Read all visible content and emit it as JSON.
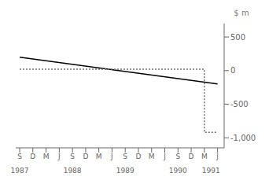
{
  "chart_data": {
    "type": "line",
    "ylabel": "$ m",
    "xlim": [
      -0.3,
      15.5
    ],
    "xticks": [
      {
        "value": 0,
        "label": "S"
      },
      {
        "value": 1,
        "label": "D"
      },
      {
        "value": 2,
        "label": "M"
      },
      {
        "value": 3,
        "label": "J"
      },
      {
        "value": 4,
        "label": "S"
      },
      {
        "value": 5,
        "label": "D"
      },
      {
        "value": 6,
        "label": "M"
      },
      {
        "value": 7,
        "label": "J"
      },
      {
        "value": 8,
        "label": "S"
      },
      {
        "value": 9,
        "label": "D"
      },
      {
        "value": 10,
        "label": "M"
      },
      {
        "value": 11,
        "label": "J"
      },
      {
        "value": 12,
        "label": "S"
      },
      {
        "value": 13,
        "label": "D"
      },
      {
        "value": 14,
        "label": "M"
      },
      {
        "value": 15,
        "label": "J"
      }
    ],
    "ylim": [
      -1150,
      700
    ],
    "yticks": [
      500,
      0,
      -500,
      {
        "value": -1000,
        "label": "-1,000"
      }
    ],
    "series": [
      {
        "x": [
          0,
          15
        ],
        "values": [
          200,
          -200
        ],
        "color": "#000000",
        "line_style": "solid"
      },
      {
        "x": [
          0,
          14,
          14,
          15
        ],
        "values": [
          20,
          20,
          -920,
          -920
        ],
        "color": "#707070",
        "line_style": "dotted"
      }
    ],
    "annotations": [
      {
        "x": 0.0,
        "text": "1987"
      },
      {
        "x": 4.0,
        "text": "1988"
      },
      {
        "x": 8.0,
        "text": "1989"
      },
      {
        "x": 12.0,
        "text": "1990"
      },
      {
        "x": 14.5,
        "text": "1991"
      }
    ]
  }
}
